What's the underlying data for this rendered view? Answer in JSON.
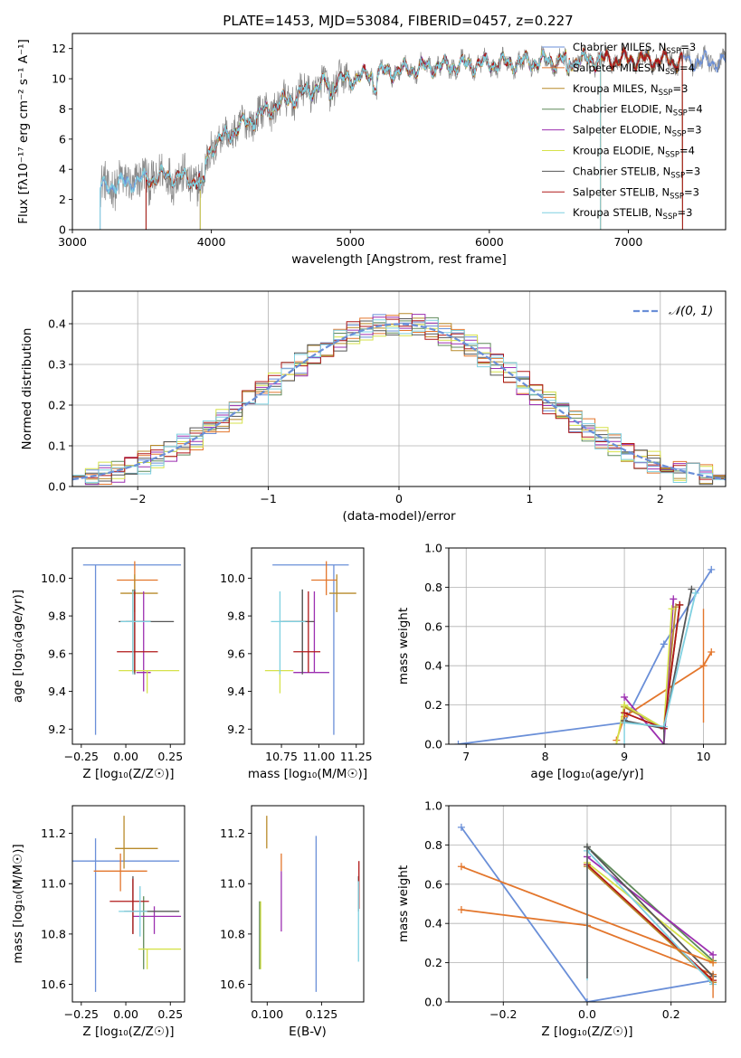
{
  "figure": {
    "title": "PLATE=1453, MJD=53084, FIBERID=0457, z=0.227"
  },
  "series_styles": [
    {
      "name": "Chabrier MILES",
      "color": "#6a8fd8"
    },
    {
      "name": "Salpeter MILES",
      "color": "#e3762c"
    },
    {
      "name": "Kroupa MILES",
      "color": "#b88a2a"
    },
    {
      "name": "Chabrier ELODIE",
      "color": "#5f8a5a"
    },
    {
      "name": "Salpeter ELODIE",
      "color": "#9c2fb0"
    },
    {
      "name": "Kroupa ELODIE",
      "color": "#d6e24a"
    },
    {
      "name": "Chabrier STELIB",
      "color": "#555555"
    },
    {
      "name": "Salpeter STELIB",
      "color": "#b01818"
    },
    {
      "name": "Kroupa STELIB",
      "color": "#7fd0e0"
    }
  ],
  "chart_data": [
    {
      "id": "spectrum",
      "type": "line",
      "title": "PLATE=1453, MJD=53084, FIBERID=0457, z=0.227",
      "xlabel": "wavelength [Angstrom, rest frame]",
      "ylabel": "Flux [fλ10⁻¹⁷ erg cm⁻² s⁻¹ A⁻¹]",
      "xlim": [
        3000,
        7700
      ],
      "ylim": [
        0,
        13
      ],
      "xticks": [
        3000,
        4000,
        5000,
        6000,
        7000
      ],
      "yticks": [
        0,
        2,
        4,
        6,
        8,
        10,
        12
      ],
      "data_color": "#888888",
      "data_range": [
        3200,
        7700
      ],
      "model_ranges": [
        [
          3200,
          7700
        ],
        [
          3530,
          7390
        ],
        [
          3530,
          7390
        ],
        [
          3920,
          6800
        ],
        [
          3920,
          6800
        ],
        [
          3920,
          6800
        ],
        [
          3530,
          7390
        ],
        [
          3530,
          7390
        ],
        [
          3200,
          6800
        ]
      ],
      "continuum": [
        [
          3200,
          2.8
        ],
        [
          3500,
          3.3
        ],
        [
          3700,
          3.6
        ],
        [
          3900,
          3.2
        ],
        [
          4000,
          5.5
        ],
        [
          4200,
          6.8
        ],
        [
          4500,
          8.4
        ],
        [
          4800,
          9.6
        ],
        [
          5000,
          10.0
        ],
        [
          5300,
          10.5
        ],
        [
          5600,
          10.8
        ],
        [
          6000,
          11.0
        ],
        [
          6500,
          11.2
        ],
        [
          7000,
          11.3
        ],
        [
          7300,
          11.2
        ],
        [
          7700,
          11.1
        ]
      ],
      "legend": [
        {
          "name": "Chabrier MILES",
          "n_ssp": 3
        },
        {
          "name": "Salpeter MILES",
          "n_ssp": 4
        },
        {
          "name": "Kroupa MILES",
          "n_ssp": 3
        },
        {
          "name": "Chabrier ELODIE",
          "n_ssp": 4
        },
        {
          "name": "Salpeter ELODIE",
          "n_ssp": 3
        },
        {
          "name": "Kroupa ELODIE",
          "n_ssp": 4
        },
        {
          "name": "Chabrier STELIB",
          "n_ssp": 3
        },
        {
          "name": "Salpeter STELIB",
          "n_ssp": 3
        },
        {
          "name": "Kroupa STELIB",
          "n_ssp": 3
        }
      ],
      "legend_placement": "upper-right"
    },
    {
      "id": "residuals",
      "type": "step-histogram",
      "xlabel": "(data-model)/error",
      "ylabel": "Normed distribution",
      "xlim": [
        -2.5,
        2.5
      ],
      "ylim": [
        0,
        0.48
      ],
      "xticks": [
        -2,
        -1,
        0,
        1,
        2
      ],
      "yticks": [
        0.0,
        0.1,
        0.2,
        0.3,
        0.4
      ],
      "bin_width": 0.1,
      "grid": true,
      "legend_label": "𝒩(0, 1)",
      "legend_placement": "upper-right",
      "normal_color": "#6a8fd8"
    },
    {
      "id": "age-vs-Z",
      "type": "errorbar",
      "xlabel": "Z [log₁₀(Z/Z☉)]",
      "ylabel": "age  [log₁₀(age/yr)]",
      "xlim": [
        -0.3,
        0.33
      ],
      "ylim": [
        9.12,
        10.16
      ],
      "xticks": [
        -0.25,
        0.0,
        0.25
      ],
      "yticks": [
        9.2,
        9.4,
        9.6,
        9.8,
        10.0
      ],
      "points": [
        {
          "x": -0.17,
          "xerr": [
            0.07,
            0.48
          ],
          "y": 10.07,
          "yerr": [
            0.9,
            0.0
          ]
        },
        {
          "x": 0.05,
          "xerr": [
            0.1,
            0.13
          ],
          "y": 9.99,
          "yerr": [
            0.08,
            0.1
          ]
        },
        {
          "x": 0.05,
          "xerr": [
            0.08,
            0.13
          ],
          "y": 9.92,
          "yerr": [
            0.1,
            0.1
          ]
        },
        {
          "x": 0.04,
          "xerr": [
            0.04,
            0.1
          ],
          "y": 9.77,
          "yerr": [
            0.27,
            0.17
          ]
        },
        {
          "x": 0.1,
          "xerr": [
            0.04,
            0.04
          ],
          "y": 9.5,
          "yerr": [
            0.1,
            0.43
          ]
        },
        {
          "x": 0.12,
          "xerr": [
            0.16,
            0.18
          ],
          "y": 9.51,
          "yerr": [
            0.12,
            0.0
          ]
        },
        {
          "x": 0.05,
          "xerr": [
            0.09,
            0.22
          ],
          "y": 9.77,
          "yerr": [
            0.28,
            0.17
          ]
        },
        {
          "x": 0.05,
          "xerr": [
            0.1,
            0.13
          ],
          "y": 9.61,
          "yerr": [
            0.11,
            0.32
          ]
        },
        {
          "x": 0.04,
          "xerr": [
            0.07,
            0.1
          ],
          "y": 9.77,
          "yerr": [
            0.28,
            0.16
          ]
        }
      ]
    },
    {
      "id": "age-vs-mass",
      "type": "errorbar",
      "xlabel": "mass [log₁₀(M/M☉)]",
      "ylabel": "",
      "xlim": [
        10.55,
        11.3
      ],
      "ylim": [
        9.12,
        10.16
      ],
      "xticks": [
        10.75,
        11.0,
        11.25
      ],
      "yticks": [
        9.2,
        9.4,
        9.6,
        9.8,
        10.0
      ],
      "points": [
        {
          "x": 11.1,
          "xerr": [
            0.41,
            0.1
          ],
          "y": 10.07,
          "yerr": [
            0.9,
            0.0
          ]
        },
        {
          "x": 11.05,
          "xerr": [
            0.1,
            0.07
          ],
          "y": 9.99,
          "yerr": [
            0.08,
            0.1
          ]
        },
        {
          "x": 11.12,
          "xerr": [
            0.05,
            0.13
          ],
          "y": 9.92,
          "yerr": [
            0.1,
            0.1
          ]
        },
        {
          "x": 10.89,
          "xerr": [
            0.13,
            0.04
          ],
          "y": 9.77,
          "yerr": [
            0.27,
            0.17
          ]
        },
        {
          "x": 10.97,
          "xerr": [
            0.14,
            0.1
          ],
          "y": 9.5,
          "yerr": [
            0.0,
            0.43
          ]
        },
        {
          "x": 10.74,
          "xerr": [
            0.1,
            0.09
          ],
          "y": 9.51,
          "yerr": [
            0.12,
            0.0
          ]
        },
        {
          "x": 10.89,
          "xerr": [
            0.15,
            0.08
          ],
          "y": 9.77,
          "yerr": [
            0.28,
            0.17
          ]
        },
        {
          "x": 10.93,
          "xerr": [
            0.1,
            0.08
          ],
          "y": 9.61,
          "yerr": [
            0.11,
            0.32
          ]
        },
        {
          "x": 10.74,
          "xerr": [
            0.06,
            0.17
          ],
          "y": 9.77,
          "yerr": [
            0.28,
            0.16
          ]
        }
      ]
    },
    {
      "id": "weight-vs-age",
      "type": "line",
      "xlabel": "age  [log₁₀(age/yr)]",
      "ylabel": "mass weight",
      "xlim": [
        6.78,
        10.28
      ],
      "ylim": [
        0,
        1.0
      ],
      "xticks": [
        7,
        8,
        9,
        10
      ],
      "yticks": [
        0.0,
        0.2,
        0.4,
        0.6,
        0.8,
        1.0
      ],
      "grid": true,
      "series": [
        {
          "name": "Chabrier MILES",
          "x": [
            6.9,
            9.0,
            9.5,
            10.1
          ],
          "y": [
            0.0,
            0.11,
            0.51,
            0.89
          ]
        },
        {
          "name": "Salpeter MILES",
          "x": [
            8.9,
            9.0,
            10.0,
            10.1
          ],
          "y": [
            0.02,
            0.14,
            0.4,
            0.47
          ]
        },
        {
          "name": "Kroupa MILES",
          "x": [
            9.0,
            9.5,
            9.65
          ],
          "y": [
            0.19,
            0.08,
            0.7
          ]
        },
        {
          "name": "Chabrier ELODIE",
          "x": [
            9.0,
            9.5,
            9.7
          ],
          "y": [
            0.2,
            0.08,
            0.71
          ]
        },
        {
          "name": "Salpeter ELODIE",
          "x": [
            9.0,
            9.5,
            9.62
          ],
          "y": [
            0.24,
            0.0,
            0.74
          ]
        },
        {
          "name": "Kroupa ELODIE",
          "x": [
            8.9,
            9.0,
            9.5,
            9.6
          ],
          "y": [
            0.0,
            0.2,
            0.08,
            0.69
          ]
        },
        {
          "name": "Chabrier STELIB",
          "x": [
            9.0,
            9.5,
            9.85
          ],
          "y": [
            0.12,
            0.08,
            0.79
          ]
        },
        {
          "name": "Salpeter STELIB",
          "x": [
            9.0,
            9.5,
            9.7
          ],
          "y": [
            0.16,
            0.08,
            0.71
          ]
        },
        {
          "name": "Kroupa STELIB",
          "x": [
            9.0,
            9.5,
            9.9
          ],
          "y": [
            0.11,
            0.09,
            0.77
          ]
        }
      ],
      "vbars": [
        {
          "series": 8,
          "x": 9.0,
          "y0": 0.0,
          "y1": 0.12
        },
        {
          "series": 1,
          "x": 10.0,
          "y0": 0.11,
          "y1": 0.69
        },
        {
          "series": 6,
          "x": 9.5,
          "y0": 0.0,
          "y1": 0.09
        }
      ]
    },
    {
      "id": "mass-vs-Z",
      "type": "errorbar",
      "xlabel": "Z [log₁₀(Z/Z☉)]",
      "ylabel": "mass [log₁₀(M/M☉)]",
      "xlim": [
        -0.3,
        0.33
      ],
      "ylim": [
        10.53,
        11.31
      ],
      "xticks": [
        -0.25,
        0.0,
        0.25
      ],
      "yticks": [
        10.6,
        10.8,
        11.0,
        11.2
      ],
      "points": [
        {
          "x": -0.17,
          "xerr": [
            0.13,
            0.47
          ],
          "y": 11.09,
          "yerr": [
            0.52,
            0.09
          ]
        },
        {
          "x": -0.03,
          "xerr": [
            0.15,
            0.15
          ],
          "y": 11.05,
          "yerr": [
            0.08,
            0.07
          ]
        },
        {
          "x": -0.01,
          "xerr": [
            0.05,
            0.19
          ],
          "y": 11.14,
          "yerr": [
            0.08,
            0.13
          ]
        },
        {
          "x": 0.1,
          "xerr": [
            0.06,
            0.2
          ],
          "y": 10.89,
          "yerr": [
            0.23,
            0.06
          ]
        },
        {
          "x": 0.16,
          "xerr": [
            0.12,
            0.15
          ],
          "y": 10.87,
          "yerr": [
            0.07,
            0.04
          ]
        },
        {
          "x": 0.12,
          "xerr": [
            0.05,
            0.19
          ],
          "y": 10.74,
          "yerr": [
            0.08,
            0.0
          ]
        },
        {
          "x": 0.04,
          "xerr": [
            0.05,
            0.26
          ],
          "y": 10.89,
          "yerr": [
            0.09,
            0.14
          ]
        },
        {
          "x": 0.04,
          "xerr": [
            0.13,
            0.09
          ],
          "y": 10.93,
          "yerr": [
            0.13,
            0.09
          ]
        },
        {
          "x": 0.08,
          "xerr": [
            0.12,
            0.04
          ],
          "y": 10.89,
          "yerr": [
            0.1,
            0.1
          ]
        }
      ]
    },
    {
      "id": "mass-vs-EBV",
      "type": "errorbar",
      "xlabel": "E(B-V)",
      "ylabel": "",
      "xlim": [
        0.0928,
        0.1444
      ],
      "ylim": [
        10.53,
        11.31
      ],
      "xticks": [
        0.1,
        0.125
      ],
      "yticks": [
        10.6,
        10.8,
        11.0,
        11.2
      ],
      "points": [
        {
          "x": 0.1225,
          "y": 11.09,
          "yerr": [
            0.52,
            0.1
          ]
        },
        {
          "x": 0.1065,
          "y": 11.05,
          "yerr": [
            0.0,
            0.07
          ]
        },
        {
          "x": 0.0998,
          "y": 11.14,
          "yerr": [
            0.0,
            0.13
          ]
        },
        {
          "x": 0.0965,
          "y": 10.89,
          "yerr": [
            0.23,
            0.04
          ]
        },
        {
          "x": 0.1065,
          "y": 10.93,
          "yerr": [
            0.12,
            0.12
          ]
        },
        {
          "x": 0.097,
          "y": 10.8,
          "yerr": [
            0.14,
            0.13
          ]
        },
        {
          "x": 0.142,
          "y": 10.89,
          "yerr": [
            0.0,
            0.14
          ]
        },
        {
          "x": 0.1422,
          "y": 11.01,
          "yerr": [
            0.11,
            0.08
          ]
        },
        {
          "x": 0.142,
          "y": 10.89,
          "yerr": [
            0.2,
            0.12
          ]
        }
      ]
    },
    {
      "id": "weight-vs-Z",
      "type": "line",
      "xlabel": "Z [log₁₀(Z/Z☉)]",
      "ylabel": "mass weight",
      "xlim": [
        -0.33,
        0.33
      ],
      "ylim": [
        0,
        1.0
      ],
      "xticks": [
        -0.2,
        0.0,
        0.2
      ],
      "yticks": [
        0.0,
        0.2,
        0.4,
        0.6,
        0.8,
        1.0
      ],
      "grid": true,
      "series": [
        {
          "name": "Chabrier MILES",
          "x": [
            -0.3,
            0.0,
            0.3
          ],
          "y": [
            0.89,
            0.0,
            0.11
          ]
        },
        {
          "name": "Salpeter MILES",
          "x": [
            -0.3,
            0.0,
            0.3
          ],
          "y": [
            0.47,
            0.39,
            0.14
          ]
        },
        {
          "name": "Kroupa MILES",
          "x": [
            0.0,
            0.3
          ],
          "y": [
            0.69,
            0.1
          ]
        },
        {
          "name": "Chabrier ELODIE",
          "x": [
            0.0,
            0.3
          ],
          "y": [
            0.79,
            0.21
          ]
        },
        {
          "name": "Salpeter ELODIE",
          "x": [
            0.0,
            0.3
          ],
          "y": [
            0.74,
            0.24
          ]
        },
        {
          "name": "Kroupa ELODIE",
          "x": [
            0.0,
            0.3
          ],
          "y": [
            0.71,
            0.2
          ]
        },
        {
          "name": "Chabrier STELIB",
          "x": [
            0.0,
            0.3
          ],
          "y": [
            0.79,
            0.13
          ]
        },
        {
          "name": "Salpeter STELIB",
          "x": [
            0.0,
            0.3
          ],
          "y": [
            0.7,
            0.11
          ]
        },
        {
          "name": "Kroupa STELIB",
          "x": [
            0.0,
            0.3
          ],
          "y": [
            0.77,
            0.09
          ]
        }
      ],
      "extra_series": {
        "name": "Kroupa MILES",
        "x": [
          -0.3,
          0.3
        ],
        "y": [
          0.69,
          0.2
        ]
      },
      "vbars": [
        {
          "series": 8,
          "x": 0.0,
          "y0": 0.11,
          "y1": 0.77
        },
        {
          "series": 6,
          "x": 0.0,
          "y0": 0.12,
          "y1": 0.79
        },
        {
          "series": 1,
          "x": 0.3,
          "y0": 0.02,
          "y1": 0.14
        }
      ]
    }
  ]
}
